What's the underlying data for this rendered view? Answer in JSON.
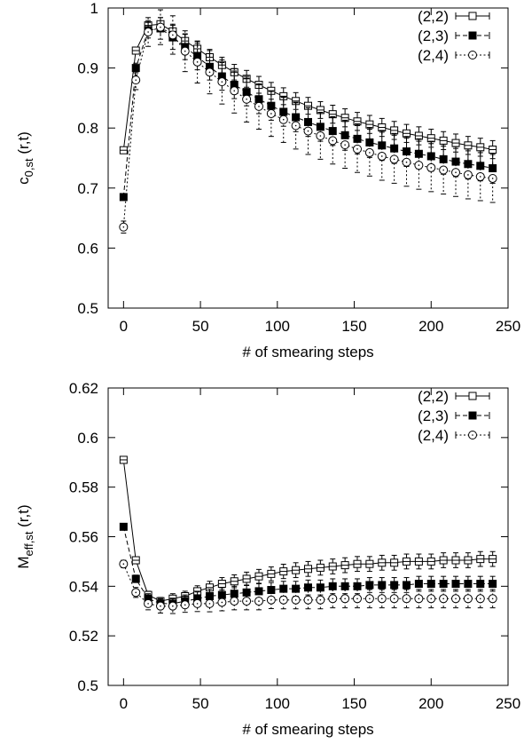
{
  "chart_data": [
    {
      "type": "line",
      "xlabel": "# of smearing steps",
      "ylabel_main": "c",
      "ylabel_sub": "0,st",
      "ylabel_tail": " (r,t)",
      "xlim": [
        -10,
        250
      ],
      "ylim": [
        0.5,
        1.0
      ],
      "xticks": [
        0,
        50,
        100,
        150,
        200,
        250
      ],
      "xtick_labels": [
        "0",
        "50",
        "100",
        "150",
        "200",
        "250"
      ],
      "yticks": [
        0.5,
        0.6,
        0.7,
        0.8,
        0.9,
        1.0
      ],
      "ytick_labels": [
        "0.5",
        "0.6",
        "0.7",
        "0.8",
        "0.9",
        "1"
      ],
      "grid": false,
      "legend_position": "top-right",
      "series": [
        {
          "name": "(2,2)",
          "marker": "open-square",
          "line": "solid",
          "x": [
            0,
            8,
            16,
            24,
            32,
            40,
            48,
            56,
            64,
            72,
            80,
            88,
            96,
            104,
            112,
            120,
            128,
            136,
            144,
            152,
            160,
            168,
            176,
            184,
            192,
            200,
            208,
            216,
            224,
            232,
            240
          ],
          "y": [
            0.763,
            0.929,
            0.971,
            0.973,
            0.961,
            0.945,
            0.932,
            0.918,
            0.905,
            0.893,
            0.882,
            0.872,
            0.862,
            0.853,
            0.845,
            0.837,
            0.83,
            0.823,
            0.817,
            0.811,
            0.806,
            0.801,
            0.796,
            0.791,
            0.787,
            0.783,
            0.779,
            0.775,
            0.771,
            0.768,
            0.764
          ],
          "err": [
            0.003,
            0.004,
            0.008,
            0.011,
            0.012,
            0.012,
            0.012,
            0.013,
            0.013,
            0.013,
            0.014,
            0.014,
            0.014,
            0.014,
            0.014,
            0.014,
            0.014,
            0.015,
            0.015,
            0.015,
            0.015,
            0.015,
            0.015,
            0.015,
            0.015,
            0.015,
            0.015,
            0.015,
            0.015,
            0.015,
            0.015
          ]
        },
        {
          "name": "(2,3)",
          "marker": "filled-square",
          "line": "dashed",
          "x": [
            0,
            8,
            16,
            24,
            32,
            40,
            48,
            56,
            64,
            72,
            80,
            88,
            96,
            104,
            112,
            120,
            128,
            136,
            144,
            152,
            160,
            168,
            176,
            184,
            192,
            200,
            208,
            216,
            224,
            232,
            240
          ],
          "y": [
            0.685,
            0.9,
            0.963,
            0.966,
            0.951,
            0.935,
            0.919,
            0.902,
            0.886,
            0.872,
            0.86,
            0.848,
            0.837,
            0.827,
            0.818,
            0.81,
            0.802,
            0.795,
            0.788,
            0.782,
            0.776,
            0.771,
            0.766,
            0.761,
            0.757,
            0.753,
            0.748,
            0.744,
            0.74,
            0.737,
            0.733
          ],
          "err": [
            0.004,
            0.008,
            0.013,
            0.018,
            0.02,
            0.021,
            0.022,
            0.022,
            0.023,
            0.023,
            0.023,
            0.024,
            0.024,
            0.024,
            0.024,
            0.024,
            0.024,
            0.024,
            0.025,
            0.025,
            0.025,
            0.025,
            0.025,
            0.025,
            0.025,
            0.025,
            0.025,
            0.025,
            0.025,
            0.025,
            0.025
          ]
        },
        {
          "name": "(2,4)",
          "marker": "open-circle",
          "line": "dotted",
          "x": [
            0,
            8,
            16,
            24,
            32,
            40,
            48,
            56,
            64,
            72,
            80,
            88,
            96,
            104,
            112,
            120,
            128,
            136,
            144,
            152,
            160,
            168,
            176,
            184,
            192,
            200,
            208,
            216,
            224,
            232,
            240
          ],
          "y": [
            0.635,
            0.88,
            0.96,
            0.968,
            0.955,
            0.928,
            0.91,
            0.893,
            0.877,
            0.862,
            0.848,
            0.836,
            0.824,
            0.814,
            0.804,
            0.795,
            0.787,
            0.779,
            0.772,
            0.765,
            0.759,
            0.753,
            0.748,
            0.743,
            0.738,
            0.734,
            0.73,
            0.726,
            0.722,
            0.719,
            0.716
          ],
          "err": [
            0.01,
            0.016,
            0.024,
            0.029,
            0.032,
            0.034,
            0.035,
            0.036,
            0.037,
            0.037,
            0.038,
            0.038,
            0.038,
            0.038,
            0.039,
            0.039,
            0.039,
            0.039,
            0.039,
            0.039,
            0.039,
            0.04,
            0.04,
            0.04,
            0.04,
            0.04,
            0.04,
            0.04,
            0.04,
            0.04,
            0.04
          ]
        }
      ]
    },
    {
      "type": "line",
      "xlabel": "# of smearing steps",
      "ylabel_main": "M",
      "ylabel_sub": "eff,st",
      "ylabel_tail": " (r,t)",
      "xlim": [
        -10,
        250
      ],
      "ylim": [
        0.5,
        0.62
      ],
      "xticks": [
        0,
        50,
        100,
        150,
        200,
        250
      ],
      "xtick_labels": [
        "0",
        "50",
        "100",
        "150",
        "200",
        "250"
      ],
      "yticks": [
        0.5,
        0.52,
        0.54,
        0.56,
        0.58,
        0.6,
        0.62
      ],
      "ytick_labels": [
        "0.5",
        "0.52",
        "0.54",
        "0.56",
        "0.58",
        "0.6",
        "0.62"
      ],
      "grid": false,
      "legend_position": "top-right",
      "series": [
        {
          "name": "(2,2)",
          "marker": "open-square",
          "line": "solid",
          "x": [
            0,
            8,
            16,
            24,
            32,
            40,
            48,
            56,
            64,
            72,
            80,
            88,
            96,
            104,
            112,
            120,
            128,
            136,
            144,
            152,
            160,
            168,
            176,
            184,
            192,
            200,
            208,
            216,
            224,
            232,
            240
          ],
          "y": [
            0.591,
            0.5505,
            0.5365,
            0.534,
            0.535,
            0.536,
            0.538,
            0.5395,
            0.541,
            0.542,
            0.543,
            0.544,
            0.545,
            0.546,
            0.5465,
            0.547,
            0.5475,
            0.548,
            0.5485,
            0.549,
            0.549,
            0.5495,
            0.5495,
            0.55,
            0.55,
            0.55,
            0.5505,
            0.5505,
            0.5505,
            0.551,
            0.551
          ],
          "err": [
            0.001,
            0.001,
            0.0015,
            0.0015,
            0.002,
            0.002,
            0.0022,
            0.0025,
            0.0025,
            0.0026,
            0.0027,
            0.0028,
            0.0028,
            0.0029,
            0.003,
            0.003,
            0.003,
            0.003,
            0.003,
            0.003,
            0.003,
            0.003,
            0.003,
            0.003,
            0.003,
            0.003,
            0.003,
            0.003,
            0.003,
            0.003,
            0.003
          ]
        },
        {
          "name": "(2,3)",
          "marker": "filled-square",
          "line": "dashed",
          "x": [
            0,
            8,
            16,
            24,
            32,
            40,
            48,
            56,
            64,
            72,
            80,
            88,
            96,
            104,
            112,
            120,
            128,
            136,
            144,
            152,
            160,
            168,
            176,
            184,
            192,
            200,
            208,
            216,
            224,
            232,
            240
          ],
          "y": [
            0.564,
            0.543,
            0.535,
            0.533,
            0.533,
            0.534,
            0.535,
            0.536,
            0.5365,
            0.537,
            0.5375,
            0.538,
            0.5385,
            0.539,
            0.539,
            0.5395,
            0.5395,
            0.54,
            0.54,
            0.54,
            0.5405,
            0.5405,
            0.5405,
            0.5405,
            0.541,
            0.541,
            0.541,
            0.541,
            0.541,
            0.541,
            0.541
          ],
          "err": [
            0.001,
            0.0015,
            0.002,
            0.002,
            0.0022,
            0.0025,
            0.0027,
            0.0028,
            0.0029,
            0.003,
            0.003,
            0.003,
            0.003,
            0.003,
            0.003,
            0.003,
            0.003,
            0.003,
            0.003,
            0.003,
            0.003,
            0.003,
            0.003,
            0.003,
            0.003,
            0.003,
            0.003,
            0.003,
            0.003,
            0.003,
            0.003
          ]
        },
        {
          "name": "(2,4)",
          "marker": "open-circle",
          "line": "dotted",
          "x": [
            0,
            8,
            16,
            24,
            32,
            40,
            48,
            56,
            64,
            72,
            80,
            88,
            96,
            104,
            112,
            120,
            128,
            136,
            144,
            152,
            160,
            168,
            176,
            184,
            192,
            200,
            208,
            216,
            224,
            232,
            240
          ],
          "y": [
            0.549,
            0.5375,
            0.533,
            0.532,
            0.532,
            0.5325,
            0.533,
            0.533,
            0.5335,
            0.534,
            0.534,
            0.534,
            0.5345,
            0.5345,
            0.5345,
            0.5345,
            0.5345,
            0.535,
            0.535,
            0.535,
            0.535,
            0.535,
            0.535,
            0.535,
            0.535,
            0.535,
            0.535,
            0.535,
            0.535,
            0.535,
            0.535
          ],
          "err": [
            0.0015,
            0.002,
            0.0025,
            0.0028,
            0.003,
            0.003,
            0.0032,
            0.0033,
            0.0034,
            0.0035,
            0.0035,
            0.0035,
            0.0035,
            0.0036,
            0.0036,
            0.0036,
            0.0036,
            0.0037,
            0.0037,
            0.0037,
            0.0037,
            0.0037,
            0.0037,
            0.0037,
            0.0037,
            0.0037,
            0.0037,
            0.0037,
            0.0037,
            0.0037,
            0.0037
          ]
        }
      ]
    }
  ]
}
